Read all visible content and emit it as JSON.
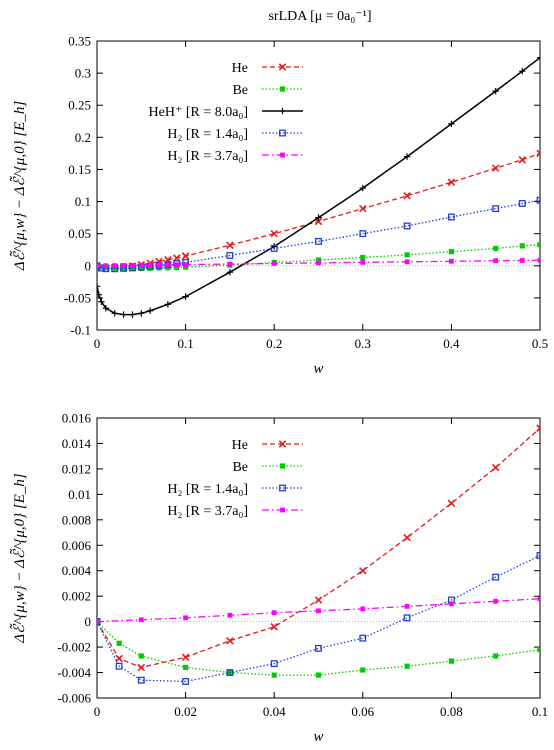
{
  "title": "srLDA [μ = 0a₀⁻¹]",
  "chart_data": [
    {
      "type": "line",
      "xlabel": "w",
      "ylabel": "Δℰ̃^{μ,w} − Δℰ̃^{μ,0} [E_h]",
      "xlim": [
        0,
        0.5
      ],
      "ylim": [
        -0.1,
        0.35
      ],
      "xticks": [
        0,
        0.1,
        0.2,
        0.3,
        0.4,
        0.5
      ],
      "xtick_labels": [
        "0",
        "0.1",
        "0.2",
        "0.3",
        "0.4",
        "0.5"
      ],
      "yticks": [
        -0.1,
        -0.05,
        0,
        0.05,
        0.1,
        0.15,
        0.2,
        0.25,
        0.3,
        0.35
      ],
      "ytick_labels": [
        "-0.1",
        "-0.05",
        "0",
        "0.05",
        "0.1",
        "0.15",
        "0.2",
        "0.25",
        "0.3",
        "0.35"
      ],
      "legend_position": "top-right",
      "series": [
        {
          "name": "He",
          "color": "#e41a1c",
          "dash": "dashed",
          "marker": "x",
          "x": [
            0,
            0.005,
            0.01,
            0.02,
            0.03,
            0.04,
            0.05,
            0.06,
            0.07,
            0.08,
            0.09,
            0.1,
            0.15,
            0.2,
            0.25,
            0.3,
            0.35,
            0.4,
            0.45,
            0.48,
            0.5
          ],
          "y": [
            0,
            -0.0029,
            -0.0036,
            -0.0028,
            -0.0015,
            -0.0004,
            0.0017,
            0.004,
            0.0066,
            0.0093,
            0.0121,
            0.0152,
            0.032,
            0.05,
            0.069,
            0.089,
            0.109,
            0.13,
            0.152,
            0.165,
            0.175
          ]
        },
        {
          "name": "Be",
          "color": "#00cc00",
          "dash": "dotted",
          "marker": "square",
          "x": [
            0,
            0.005,
            0.01,
            0.02,
            0.03,
            0.04,
            0.05,
            0.06,
            0.07,
            0.08,
            0.09,
            0.1,
            0.15,
            0.2,
            0.25,
            0.3,
            0.35,
            0.4,
            0.45,
            0.48,
            0.5
          ],
          "y": [
            0,
            -0.0017,
            -0.0027,
            -0.0036,
            -0.004,
            -0.0042,
            -0.0042,
            -0.0038,
            -0.0035,
            -0.0031,
            -0.0027,
            -0.0022,
            0.001,
            0.005,
            0.009,
            0.013,
            0.017,
            0.022,
            0.027,
            0.031,
            0.033
          ]
        },
        {
          "name": "HeH⁺ [R = 8.0a₀]",
          "color": "#000000",
          "dash": "solid",
          "marker": "plus",
          "x": [
            0,
            0.002,
            0.005,
            0.01,
            0.02,
            0.03,
            0.04,
            0.05,
            0.06,
            0.08,
            0.1,
            0.15,
            0.2,
            0.25,
            0.3,
            0.35,
            0.4,
            0.45,
            0.48,
            0.5
          ],
          "y": [
            -0.032,
            -0.045,
            -0.056,
            -0.066,
            -0.074,
            -0.076,
            -0.076,
            -0.074,
            -0.07,
            -0.06,
            -0.048,
            -0.01,
            0.03,
            0.075,
            0.121,
            0.17,
            0.221,
            0.272,
            0.303,
            0.324
          ]
        },
        {
          "name": "H₂ [R = 1.4a₀]",
          "color": "#1f3fd8",
          "dash": "dotted",
          "marker": "box",
          "x": [
            0,
            0.005,
            0.01,
            0.02,
            0.03,
            0.04,
            0.05,
            0.06,
            0.07,
            0.08,
            0.09,
            0.1,
            0.15,
            0.2,
            0.25,
            0.3,
            0.35,
            0.4,
            0.45,
            0.48,
            0.5
          ],
          "y": [
            0,
            -0.0035,
            -0.0046,
            -0.0047,
            -0.004,
            -0.0033,
            -0.0021,
            -0.0013,
            0.0003,
            0.0017,
            0.0035,
            0.0052,
            0.016,
            0.027,
            0.038,
            0.05,
            0.062,
            0.076,
            0.089,
            0.097,
            0.102
          ]
        },
        {
          "name": "H₂ [R = 3.7a₀]",
          "color": "#ff00ff",
          "dash": "dashdot",
          "marker": "filled-square",
          "x": [
            0,
            0.01,
            0.02,
            0.03,
            0.04,
            0.05,
            0.06,
            0.07,
            0.08,
            0.09,
            0.1,
            0.15,
            0.2,
            0.25,
            0.3,
            0.35,
            0.4,
            0.45,
            0.48,
            0.5
          ],
          "y": [
            0,
            0.00015,
            0.0003,
            0.0005,
            0.0007,
            0.00085,
            0.001,
            0.0012,
            0.0014,
            0.0016,
            0.0018,
            0.0027,
            0.0036,
            0.0045,
            0.0054,
            0.0062,
            0.007,
            0.0078,
            0.0082,
            0.0086
          ]
        }
      ]
    },
    {
      "type": "line",
      "xlabel": "w",
      "ylabel": "Δℰ̃^{μ,w} − Δℰ̃^{μ,0} [E_h]",
      "xlim": [
        0,
        0.1
      ],
      "ylim": [
        -0.006,
        0.016
      ],
      "xticks": [
        0,
        0.02,
        0.04,
        0.06,
        0.08,
        0.1
      ],
      "xtick_labels": [
        "0",
        "0.02",
        "0.04",
        "0.06",
        "0.08",
        "0.1"
      ],
      "yticks": [
        -0.006,
        -0.004,
        -0.002,
        0,
        0.002,
        0.004,
        0.006,
        0.008,
        0.01,
        0.012,
        0.014,
        0.016
      ],
      "ytick_labels": [
        "-0.006",
        "-0.004",
        "-0.002",
        "0",
        "0.002",
        "0.004",
        "0.006",
        "0.008",
        "0.01",
        "0.012",
        "0.014",
        "0.016"
      ],
      "legend_position": "top-left",
      "series": [
        {
          "name": "He",
          "color": "#e41a1c",
          "dash": "dashed",
          "marker": "x",
          "x": [
            0,
            0.005,
            0.01,
            0.02,
            0.03,
            0.04,
            0.05,
            0.06,
            0.07,
            0.08,
            0.09,
            0.1
          ],
          "y": [
            0,
            -0.0029,
            -0.0036,
            -0.0028,
            -0.0015,
            -0.0004,
            0.0017,
            0.004,
            0.0066,
            0.0093,
            0.0121,
            0.0152
          ]
        },
        {
          "name": "Be",
          "color": "#00cc00",
          "dash": "dotted",
          "marker": "square",
          "x": [
            0,
            0.005,
            0.01,
            0.02,
            0.03,
            0.04,
            0.05,
            0.06,
            0.07,
            0.08,
            0.09,
            0.1
          ],
          "y": [
            0,
            -0.0017,
            -0.0027,
            -0.0036,
            -0.004,
            -0.0042,
            -0.0042,
            -0.0038,
            -0.0035,
            -0.0031,
            -0.0027,
            -0.0022
          ]
        },
        {
          "name": "H₂ [R = 1.4a₀]",
          "color": "#1f3fd8",
          "dash": "dotted",
          "marker": "box",
          "x": [
            0,
            0.005,
            0.01,
            0.02,
            0.03,
            0.04,
            0.05,
            0.06,
            0.07,
            0.08,
            0.09,
            0.1
          ],
          "y": [
            0,
            -0.0035,
            -0.0046,
            -0.0047,
            -0.004,
            -0.0033,
            -0.0021,
            -0.0013,
            0.0003,
            0.0017,
            0.0035,
            0.0052
          ]
        },
        {
          "name": "H₂ [R = 3.7a₀]",
          "color": "#ff00ff",
          "dash": "dashdot",
          "marker": "filled-square",
          "x": [
            0,
            0.01,
            0.02,
            0.03,
            0.04,
            0.05,
            0.06,
            0.07,
            0.08,
            0.09,
            0.1
          ],
          "y": [
            0,
            0.00015,
            0.0003,
            0.0005,
            0.0007,
            0.00085,
            0.001,
            0.0012,
            0.0014,
            0.0016,
            0.0018
          ]
        }
      ]
    }
  ]
}
